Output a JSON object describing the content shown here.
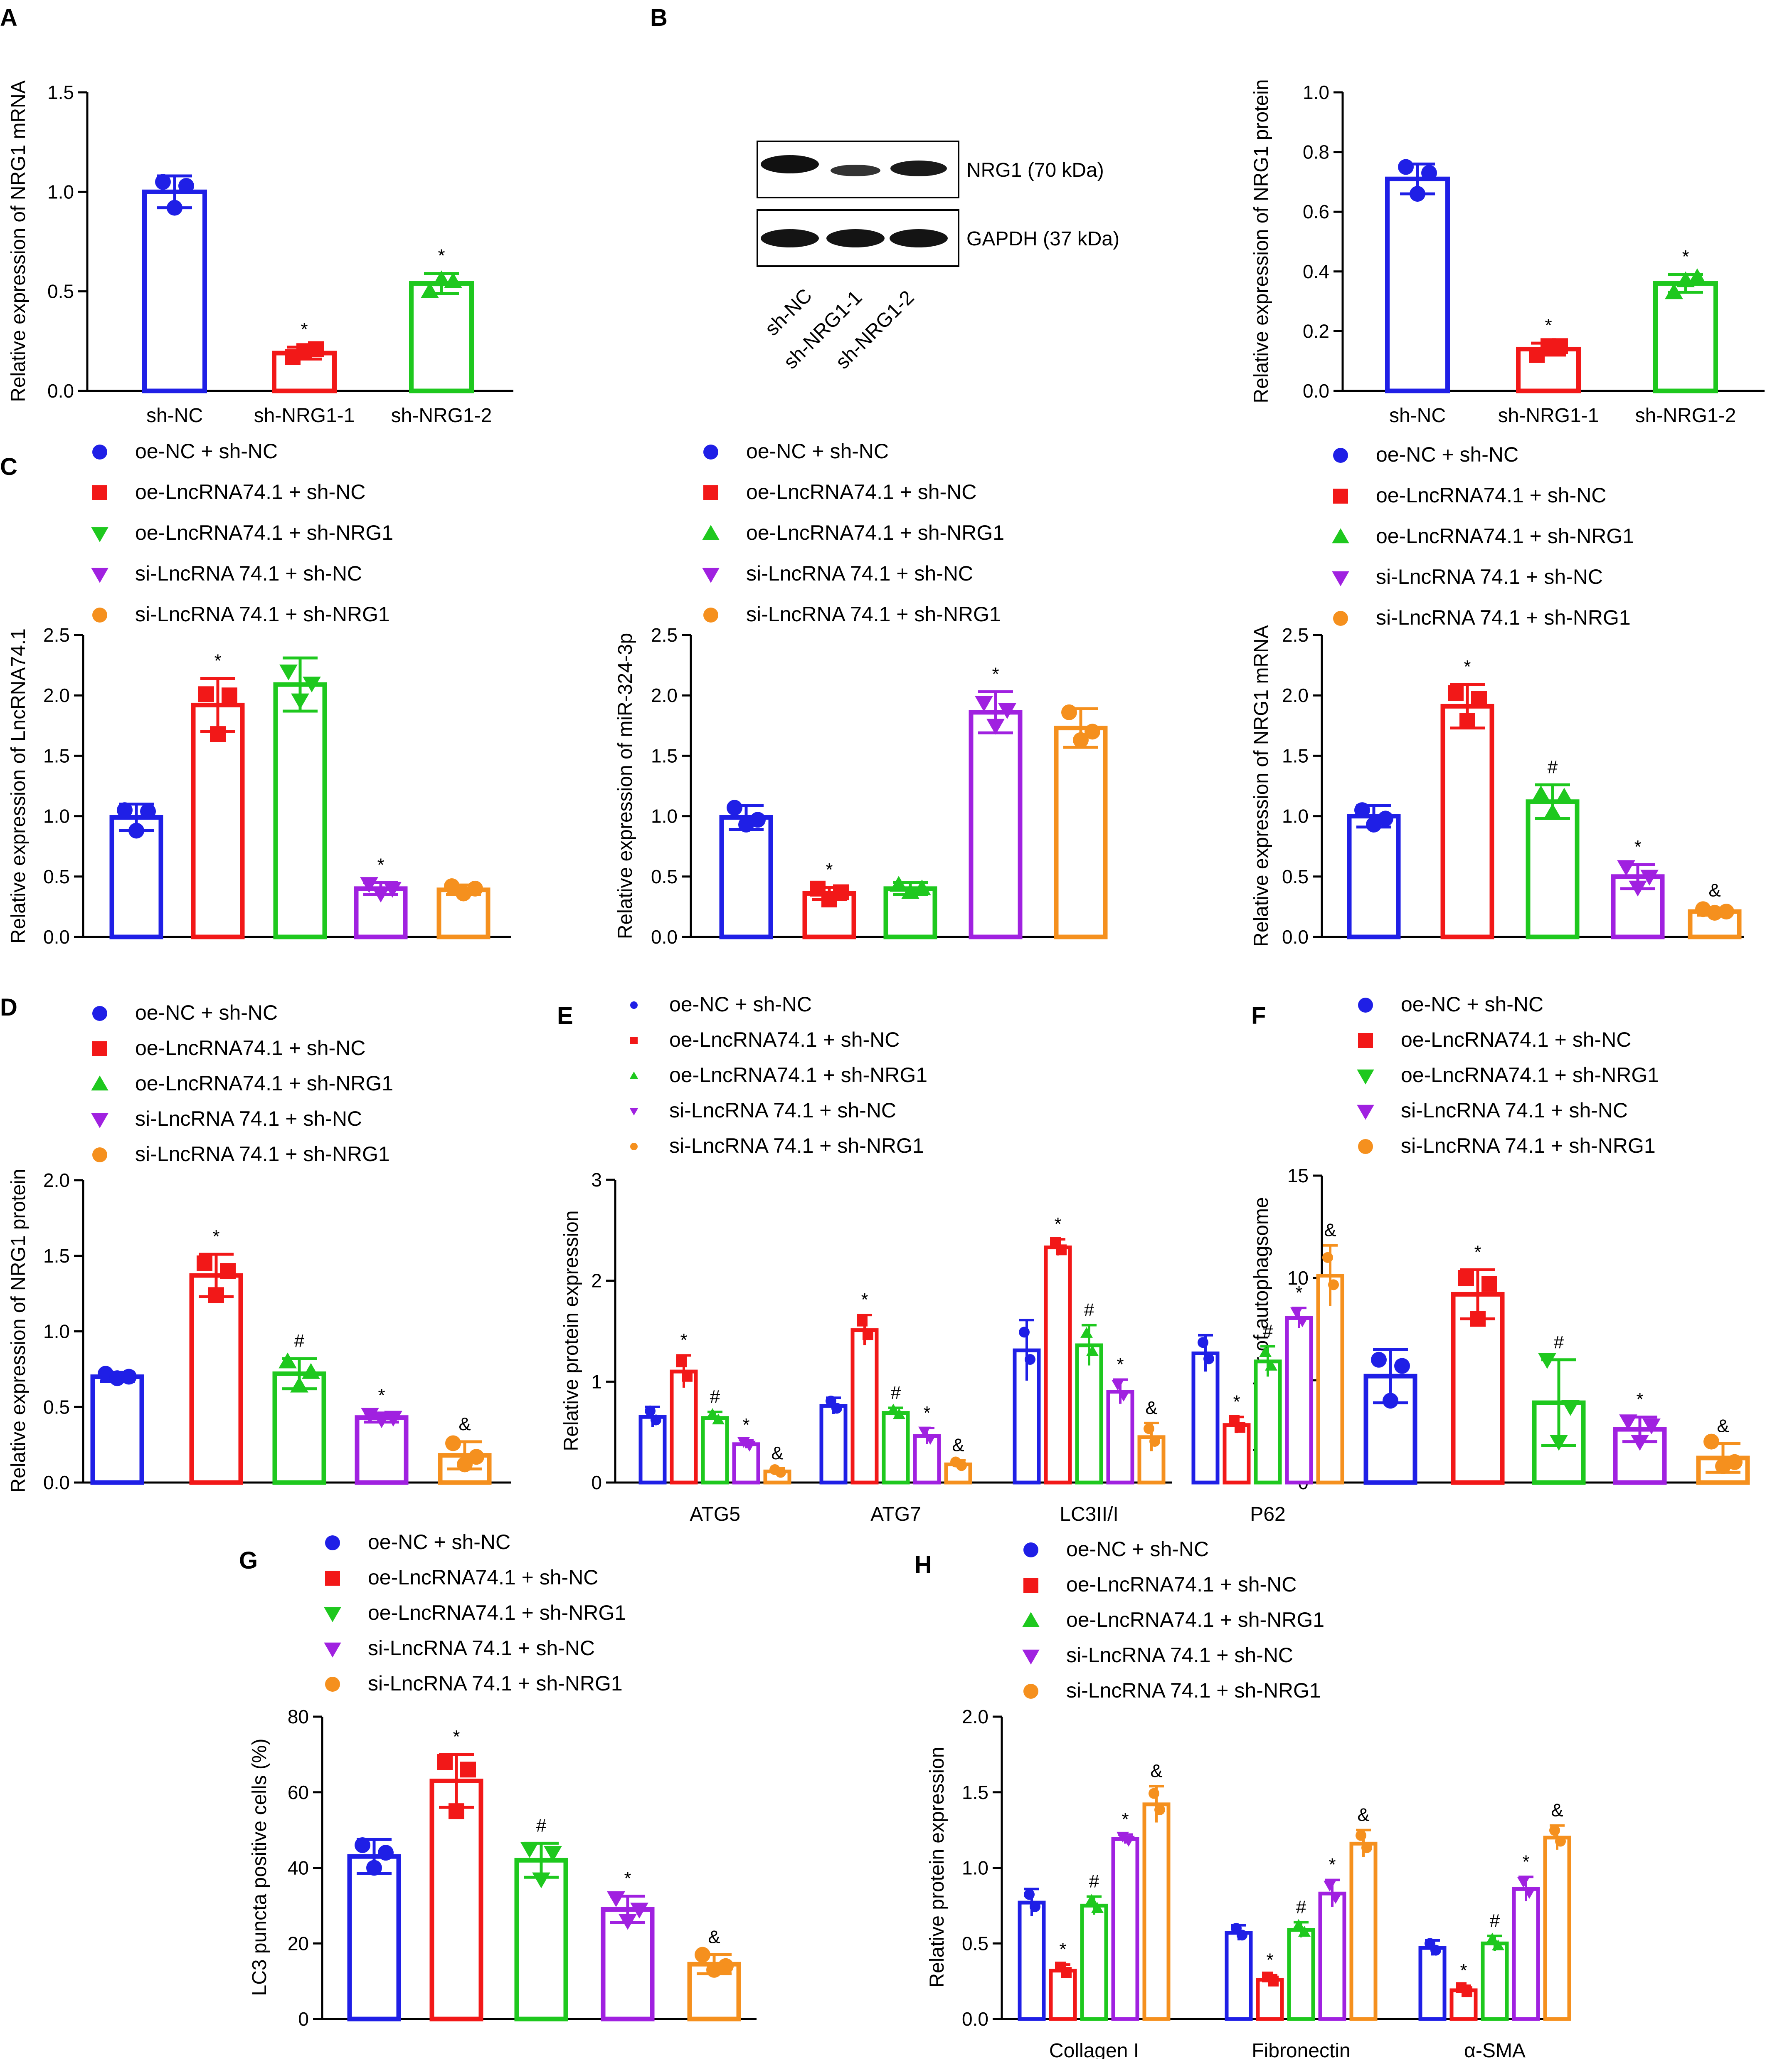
{
  "colors": {
    "blue": "#1f1fe6",
    "red": "#f21818",
    "green": "#1ec81e",
    "purple": "#a021e0",
    "orange": "#f5901e"
  },
  "legend_labels": [
    "oe-NC + sh-NC",
    "oe-LncRNA74.1 + sh-NC",
    "oe-LncRNA74.1 + sh-NRG1",
    "si-LncRNA 74.1 + sh-NC",
    "si-LncRNA 74.1 + sh-NRG1"
  ],
  "legend_marker_types": [
    "circle",
    "square",
    "triangle-down",
    "triangle-down",
    "circle"
  ],
  "blot": {
    "lanes": [
      "sh-NC",
      "sh-NRG1-1",
      "sh-NRG1-2"
    ],
    "bands": [
      "NRG1 (70 kDa)",
      "GAPDH (37 kDa)"
    ]
  },
  "chart_data": [
    {
      "panel": "A",
      "type": "bar",
      "title": "",
      "ylabel": "Relative expression of NRG1 mRNA",
      "ylim": [
        0,
        1.5
      ],
      "yticks": [
        "0.0",
        "0.5",
        "1.0",
        "1.5"
      ],
      "categories": [
        "sh-NC",
        "sh-NRG1-1",
        "sh-NRG1-2"
      ],
      "values": [
        1.0,
        0.19,
        0.54
      ],
      "errors": [
        0.08,
        0.03,
        0.05
      ],
      "points": [
        [
          1.05,
          0.92,
          1.03
        ],
        [
          0.17,
          0.2,
          0.21
        ],
        [
          0.5,
          0.56,
          0.55
        ]
      ],
      "colors": [
        "blue",
        "red",
        "green"
      ],
      "markers": [
        "circle",
        "square",
        "triangle-up"
      ],
      "annotations": [
        "",
        "*",
        "*"
      ]
    },
    {
      "panel": "B",
      "type": "bar",
      "ylabel": "Relative expression of NRG1 protein",
      "ylim": [
        0,
        1.0
      ],
      "yticks": [
        "0.0",
        "0.2",
        "0.4",
        "0.6",
        "0.8",
        "1.0"
      ],
      "categories": [
        "sh-NC",
        "sh-NRG1-1",
        "sh-NRG1-2"
      ],
      "values": [
        0.71,
        0.14,
        0.36
      ],
      "errors": [
        0.05,
        0.02,
        0.03
      ],
      "points": [
        [
          0.75,
          0.66,
          0.73
        ],
        [
          0.12,
          0.15,
          0.15
        ],
        [
          0.33,
          0.37,
          0.38
        ]
      ],
      "colors": [
        "blue",
        "red",
        "green"
      ],
      "markers": [
        "circle",
        "square",
        "triangle-up"
      ],
      "annotations": [
        "",
        "*",
        "*"
      ]
    },
    {
      "panel": "C1",
      "type": "bar",
      "ylabel": "Relative expression of LncRNA74.1",
      "ylim": [
        0,
        2.5
      ],
      "yticks": [
        "0.0",
        "0.5",
        "1.0",
        "1.5",
        "2.0",
        "2.5"
      ],
      "categories": [
        "",
        "",
        "",
        "",
        ""
      ],
      "values": [
        0.99,
        1.92,
        2.09,
        0.4,
        0.39
      ],
      "errors": [
        0.11,
        0.22,
        0.22,
        0.05,
        0.04
      ],
      "points": [
        [
          1.05,
          0.88,
          1.04
        ],
        [
          2.01,
          1.68,
          2.0
        ],
        [
          2.2,
          1.96,
          2.1
        ],
        [
          0.44,
          0.36,
          0.4
        ],
        [
          0.42,
          0.36,
          0.4
        ]
      ],
      "colors": [
        "blue",
        "red",
        "green",
        "purple",
        "orange"
      ],
      "markers": [
        "circle",
        "square",
        "triangle-down",
        "triangle-down",
        "circle"
      ],
      "annotations": [
        "",
        "*",
        "",
        "*",
        ""
      ]
    },
    {
      "panel": "C2",
      "type": "bar",
      "ylabel": "Relative  expression of miR-324-3p",
      "ylim": [
        0,
        2.5
      ],
      "yticks": [
        "0.0",
        "0.5",
        "1.0",
        "1.5",
        "2.0",
        "2.5"
      ],
      "categories": [
        "",
        "",
        "",
        "",
        ""
      ],
      "values": [
        0.99,
        0.36,
        0.4,
        1.86,
        1.73
      ],
      "errors": [
        0.1,
        0.05,
        0.05,
        0.17,
        0.16
      ],
      "points": [
        [
          1.07,
          0.93,
          0.97
        ],
        [
          0.4,
          0.31,
          0.37
        ],
        [
          0.43,
          0.37,
          0.4
        ],
        [
          1.94,
          1.75,
          1.88
        ],
        [
          1.86,
          1.63,
          1.7
        ]
      ],
      "colors": [
        "blue",
        "red",
        "green",
        "purple",
        "orange"
      ],
      "markers": [
        "circle",
        "square",
        "triangle-up",
        "triangle-down",
        "circle"
      ],
      "annotations": [
        "",
        "*",
        "",
        "*",
        ""
      ]
    },
    {
      "panel": "C3",
      "type": "bar",
      "ylabel": "Relative expression of NRG1 mRNA",
      "ylim": [
        0,
        2.5
      ],
      "yticks": [
        "0.0",
        "0.5",
        "1.0",
        "1.5",
        "2.0",
        "2.5"
      ],
      "categories": [
        "",
        "",
        "",
        "",
        ""
      ],
      "values": [
        1.0,
        1.91,
        1.12,
        0.5,
        0.21
      ],
      "errors": [
        0.09,
        0.18,
        0.14,
        0.1,
        0.03
      ],
      "points": [
        [
          1.05,
          0.93,
          0.98
        ],
        [
          2.02,
          1.79,
          1.97
        ],
        [
          1.18,
          1.03,
          1.16
        ],
        [
          0.58,
          0.41,
          0.5
        ],
        [
          0.23,
          0.2,
          0.21
        ]
      ],
      "colors": [
        "blue",
        "red",
        "green",
        "purple",
        "orange"
      ],
      "markers": [
        "circle",
        "square",
        "triangle-up",
        "triangle-down",
        "circle"
      ],
      "annotations": [
        "",
        "*",
        "#",
        "*",
        "&"
      ]
    },
    {
      "panel": "D",
      "type": "bar",
      "ylabel": "Relative expression of NRG1 protein",
      "ylim": [
        0,
        2.0
      ],
      "yticks": [
        "0.0",
        "0.5",
        "1.0",
        "1.5",
        "2.0"
      ],
      "categories": [
        "",
        "",
        "",
        "",
        ""
      ],
      "values": [
        0.7,
        1.37,
        0.72,
        0.43,
        0.18
      ],
      "errors": [
        0.03,
        0.14,
        0.1,
        0.03,
        0.09
      ],
      "points": [
        [
          0.72,
          0.69,
          0.7
        ],
        [
          1.45,
          1.24,
          1.4
        ],
        [
          0.8,
          0.64,
          0.73
        ],
        [
          0.45,
          0.42,
          0.43
        ],
        [
          0.26,
          0.12,
          0.17
        ]
      ],
      "colors": [
        "blue",
        "red",
        "green",
        "purple",
        "orange"
      ],
      "markers": [
        "circle",
        "square",
        "triangle-up",
        "triangle-down",
        "circle"
      ],
      "annotations": [
        "",
        "*",
        "#",
        "*",
        "&"
      ]
    },
    {
      "panel": "E",
      "type": "grouped-bar",
      "ylabel": "Relative protein expression",
      "ylim": [
        0,
        3
      ],
      "yticks": [
        "0",
        "1",
        "2",
        "3"
      ],
      "categories": [
        "ATG5",
        "ATG7",
        "LC3II/I",
        "P62"
      ],
      "colors": [
        "blue",
        "red",
        "green",
        "purple",
        "orange"
      ],
      "markers": [
        "circle",
        "square",
        "triangle-up",
        "triangle-down",
        "circle"
      ],
      "series": [
        {
          "name": "oe-NC + sh-NC",
          "values": [
            0.65,
            0.76,
            1.31,
            1.28
          ],
          "errors": [
            0.1,
            0.08,
            0.3,
            0.18
          ],
          "annotations": [
            "",
            "",
            "",
            ""
          ]
        },
        {
          "name": "oe-LncRNA74.1 + sh-NC",
          "values": [
            1.1,
            1.51,
            2.33,
            0.57
          ],
          "errors": [
            0.16,
            0.15,
            0.08,
            0.08
          ],
          "annotations": [
            "*",
            "*",
            "*",
            "*"
          ]
        },
        {
          "name": "oe-LncRNA74.1 + sh-NRG1",
          "values": [
            0.64,
            0.69,
            1.36,
            1.2
          ],
          "errors": [
            0.06,
            0.05,
            0.2,
            0.15
          ],
          "annotations": [
            "#",
            "#",
            "#",
            "#"
          ]
        },
        {
          "name": "si-LncRNA 74.1 + sh-NC",
          "values": [
            0.38,
            0.46,
            0.9,
            1.63
          ],
          "errors": [
            0.04,
            0.08,
            0.12,
            0.1
          ],
          "annotations": [
            "*",
            "*",
            "*",
            "*"
          ]
        },
        {
          "name": "si-LncRNA 74.1 + sh-NRG1",
          "values": [
            0.11,
            0.18,
            0.45,
            2.05
          ],
          "errors": [
            0.03,
            0.04,
            0.14,
            0.3
          ],
          "annotations": [
            "&",
            "&",
            "&",
            "&"
          ]
        }
      ]
    },
    {
      "panel": "F",
      "type": "bar",
      "ylabel": "The number of autophagsome",
      "ylim": [
        0,
        15
      ],
      "yticks": [
        "0",
        "5",
        "10",
        "15"
      ],
      "categories": [
        "",
        "",
        "",
        "",
        ""
      ],
      "values": [
        5.2,
        9.2,
        3.9,
        2.6,
        1.2
      ],
      "errors": [
        1.3,
        1.2,
        2.1,
        0.6,
        0.7
      ],
      "points": [
        [
          6.0,
          4.0,
          5.7
        ],
        [
          10.0,
          8.0,
          9.7
        ],
        [
          6.0,
          2.0,
          3.7
        ],
        [
          3.0,
          2.0,
          2.8
        ],
        [
          2.0,
          0.8,
          1.0
        ]
      ],
      "colors": [
        "blue",
        "red",
        "green",
        "purple",
        "orange"
      ],
      "markers": [
        "circle",
        "square",
        "triangle-down",
        "triangle-down",
        "circle"
      ],
      "annotations": [
        "",
        "*",
        "#",
        "*",
        "&"
      ]
    },
    {
      "panel": "G",
      "type": "bar",
      "ylabel": "LC3 puncta positive cells (%)",
      "ylim": [
        0,
        80
      ],
      "yticks": [
        "0",
        "20",
        "40",
        "60",
        "80"
      ],
      "categories": [
        "",
        "",
        "",
        "",
        ""
      ],
      "values": [
        43,
        63,
        42,
        29,
        14.5
      ],
      "errors": [
        4.5,
        7.0,
        4.5,
        3.5,
        2.5
      ],
      "points": [
        [
          46,
          40,
          44
        ],
        [
          68,
          55,
          66
        ],
        [
          45,
          37,
          44
        ],
        [
          32,
          26,
          29
        ],
        [
          17,
          13,
          14
        ]
      ],
      "colors": [
        "blue",
        "red",
        "green",
        "purple",
        "orange"
      ],
      "markers": [
        "circle",
        "square",
        "triangle-down",
        "triangle-down",
        "circle"
      ],
      "annotations": [
        "",
        "*",
        "#",
        "*",
        "&"
      ]
    },
    {
      "panel": "H",
      "type": "grouped-bar",
      "ylabel": "Relative protein expression",
      "ylim": [
        0,
        2.0
      ],
      "yticks": [
        "0.0",
        "0.5",
        "1.0",
        "1.5",
        "2.0"
      ],
      "categories": [
        "Collagen I",
        "Fibronectin",
        "α-SMA"
      ],
      "colors": [
        "blue",
        "red",
        "green",
        "purple",
        "orange"
      ],
      "markers": [
        "circle",
        "square",
        "triangle-up",
        "triangle-down",
        "circle"
      ],
      "series": [
        {
          "name": "oe-NC + sh-NC",
          "values": [
            0.77,
            0.57,
            0.47
          ],
          "errors": [
            0.09,
            0.05,
            0.05
          ],
          "annotations": [
            "",
            "",
            ""
          ]
        },
        {
          "name": "oe-LncRNA74.1 + sh-NC",
          "values": [
            0.32,
            0.26,
            0.19
          ],
          "errors": [
            0.04,
            0.03,
            0.03
          ],
          "annotations": [
            "*",
            "*",
            "*"
          ]
        },
        {
          "name": "oe-LncRNA74.1 + sh-NRG1",
          "values": [
            0.75,
            0.59,
            0.5
          ],
          "errors": [
            0.06,
            0.05,
            0.05
          ],
          "annotations": [
            "#",
            "#",
            "#"
          ]
        },
        {
          "name": "si-LncRNA 74.1 + sh-NC",
          "values": [
            1.19,
            0.83,
            0.86
          ],
          "errors": [
            0.03,
            0.09,
            0.08
          ],
          "annotations": [
            "*",
            "*",
            "*"
          ]
        },
        {
          "name": "si-LncRNA 74.1 + sh-NRG1",
          "values": [
            1.42,
            1.16,
            1.2
          ],
          "errors": [
            0.12,
            0.09,
            0.08
          ],
          "annotations": [
            "&",
            "&",
            "&"
          ]
        }
      ]
    }
  ],
  "panel_letters": [
    "A",
    "B",
    "C",
    "D",
    "E",
    "F",
    "G",
    "H"
  ]
}
